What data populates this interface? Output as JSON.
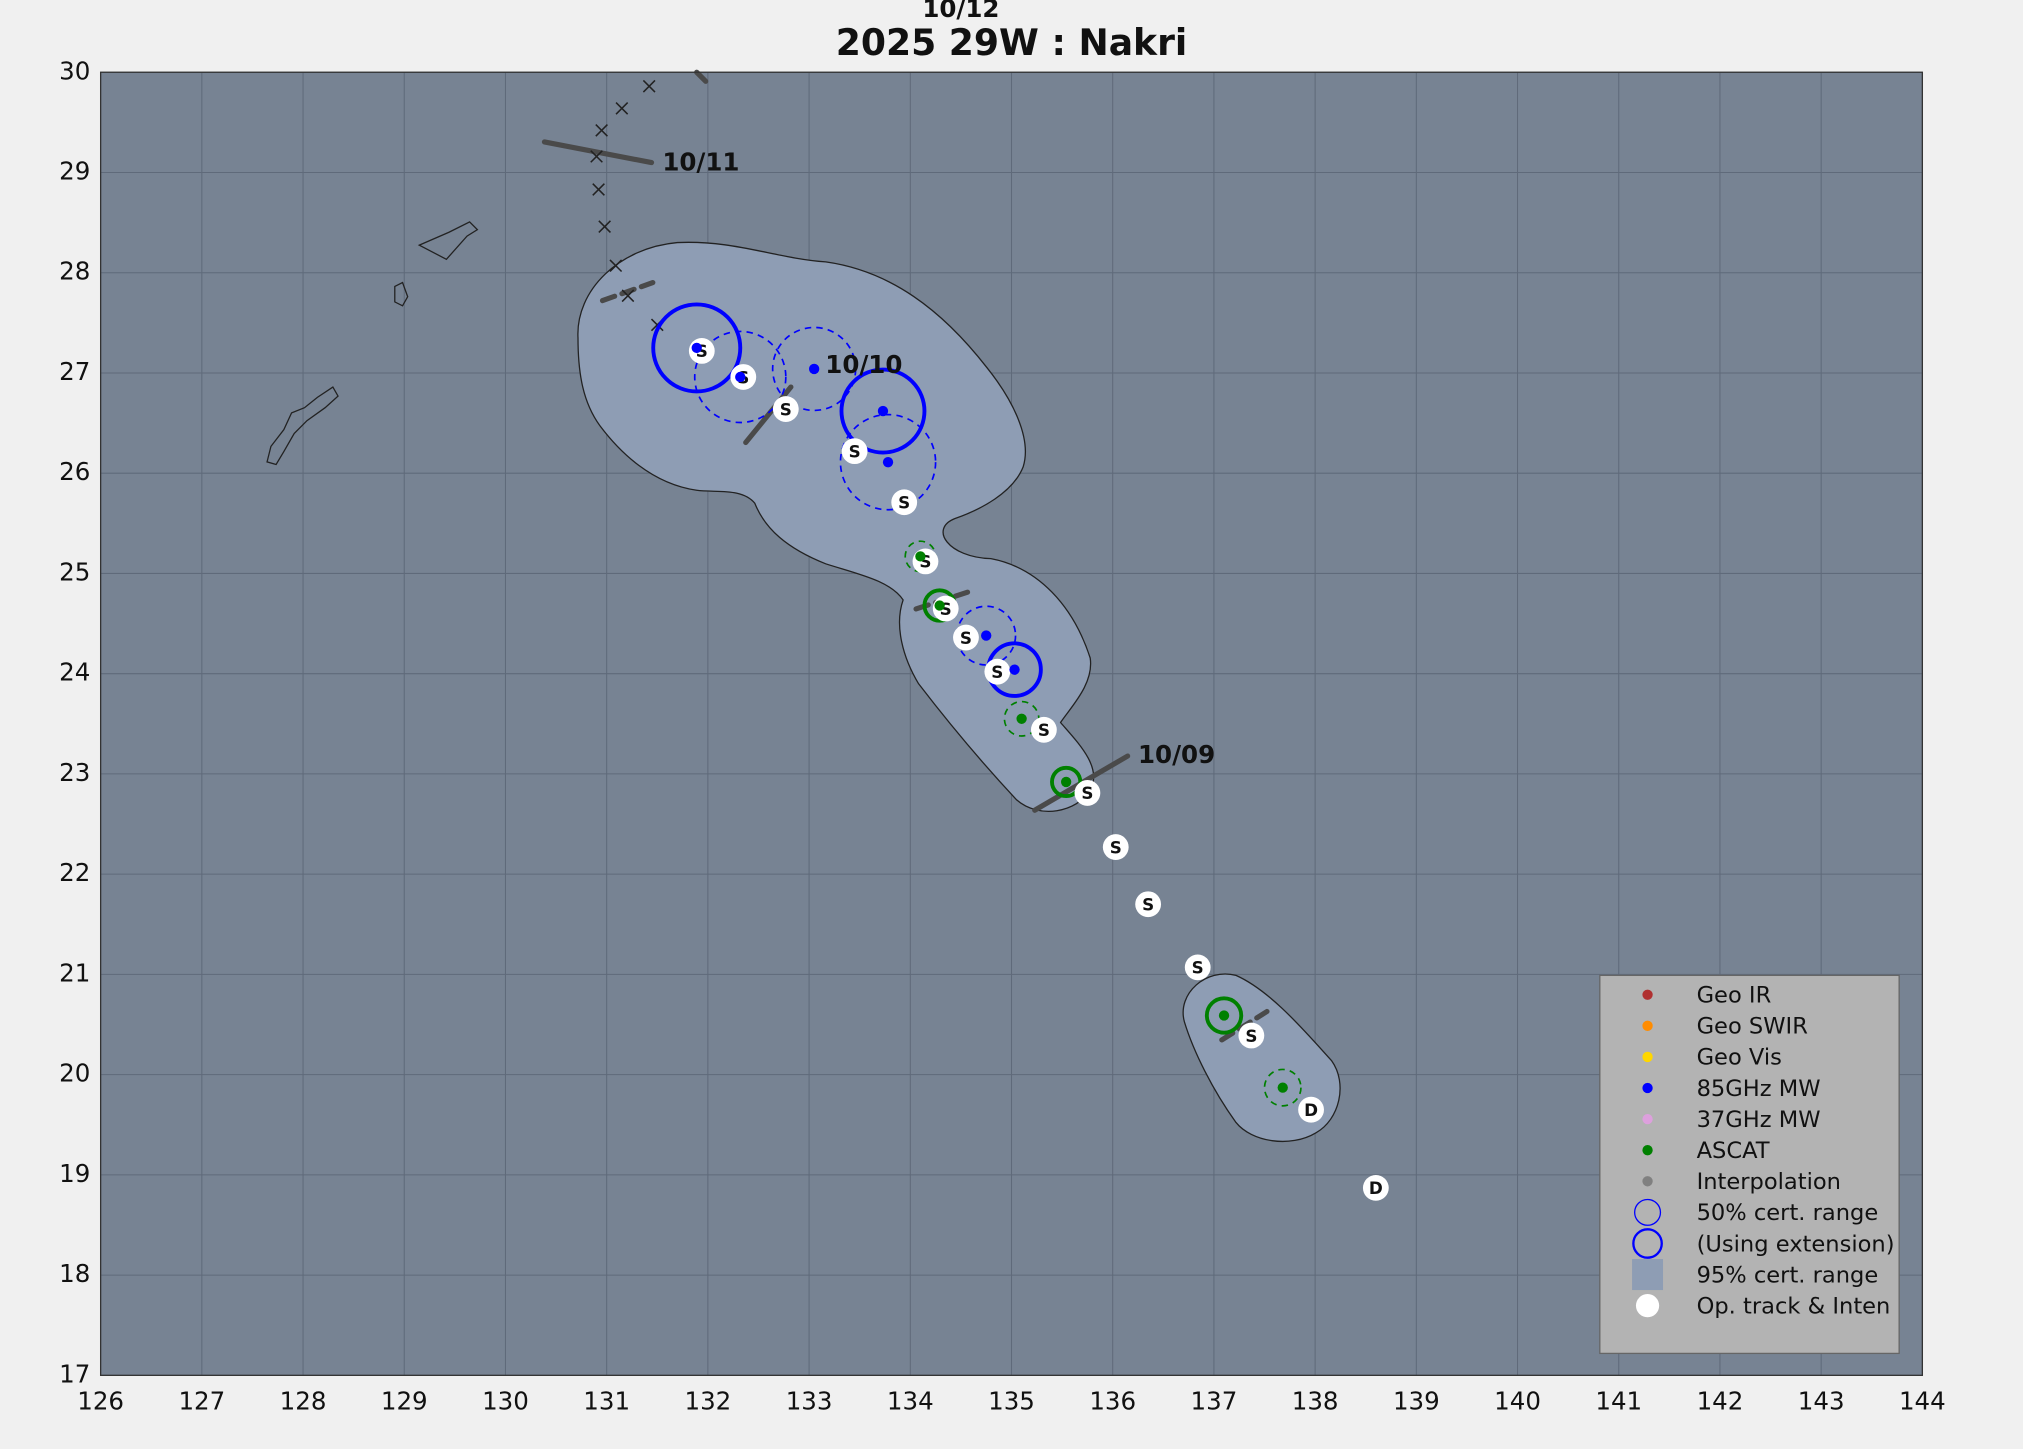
{
  "chart_data": {
    "type": "scatter",
    "title": "2025  29W :  Nakri",
    "xlim": [
      126,
      144
    ],
    "ylim": [
      17,
      30
    ],
    "xticks": [
      126,
      127,
      128,
      129,
      130,
      131,
      132,
      133,
      134,
      135,
      136,
      137,
      138,
      139,
      140,
      141,
      142,
      143,
      144
    ],
    "yticks": [
      17,
      18,
      19,
      20,
      21,
      22,
      23,
      24,
      25,
      26,
      27,
      28,
      29,
      30
    ],
    "grid": true,
    "legend_position": "lower right",
    "annotations": [
      {
        "text": "10/09",
        "x": 136.25,
        "y": 23.18
      },
      {
        "text": "10/10",
        "x": 133.16,
        "y": 27.07
      },
      {
        "text": "10/11",
        "x": 131.55,
        "y": 29.09
      },
      {
        "text": "10/12",
        "x": 134.5,
        "y": 30.62
      }
    ],
    "track_history": {
      "x": [
        131.5,
        131.21,
        131.09,
        130.98,
        130.92,
        130.9,
        130.95,
        131.15,
        131.42
      ],
      "y": [
        27.48,
        27.77,
        28.07,
        28.46,
        28.83,
        29.16,
        29.42,
        29.64,
        29.86
      ]
    },
    "op_track": {
      "color": "#ffffff",
      "x": [
        138.6,
        137.96,
        137.37,
        136.84,
        136.35,
        136.03,
        135.75,
        135.32,
        134.86,
        134.55,
        134.35,
        134.15,
        133.94,
        133.45,
        132.77,
        132.35,
        131.94
      ],
      "y": [
        18.87,
        19.65,
        20.39,
        21.07,
        21.7,
        22.27,
        22.81,
        23.44,
        24.02,
        24.36,
        24.65,
        25.12,
        25.71,
        26.22,
        26.64,
        26.96,
        27.22
      ],
      "labels": [
        "D",
        "D",
        "S",
        "S",
        "S",
        "S",
        "S",
        "S",
        "S",
        "S",
        "S",
        "S",
        "S",
        "S",
        "S",
        "S",
        "S"
      ]
    },
    "fixes": [
      {
        "color": "#0000ff",
        "x": [
          131.89,
          132.32,
          133.05,
          133.73,
          133.78,
          134.75,
          135.03
        ],
        "y": [
          27.25,
          26.96,
          27.04,
          26.62,
          26.11,
          24.38,
          24.04
        ],
        "radius": [
          0.43,
          0.45,
          0.41,
          0.41,
          0.47,
          0.29,
          0.26
        ],
        "extended": [
          true,
          false,
          false,
          true,
          false,
          false,
          true
        ]
      },
      {
        "color": "#008000",
        "x": [
          134.1,
          134.29,
          135.1,
          135.54,
          137.1,
          137.68
        ],
        "y": [
          25.17,
          24.68,
          23.55,
          22.92,
          20.59,
          19.87
        ],
        "radius": [
          0.15,
          0.15,
          0.17,
          0.14,
          0.17,
          0.18
        ],
        "extended": [
          false,
          true,
          false,
          true,
          true,
          false
        ]
      }
    ],
    "legend": [
      {
        "name": "Geo IR",
        "color": "#b03030",
        "marker": "dot"
      },
      {
        "name": "Geo SWIR",
        "color": "#ff8c00",
        "marker": "dot"
      },
      {
        "name": "Geo Vis",
        "color": "#ffd700",
        "marker": "dot"
      },
      {
        "name": "85GHz MW",
        "color": "#0000ff",
        "marker": "dot"
      },
      {
        "name": "37GHz MW",
        "color": "#dda0dd",
        "marker": "dot"
      },
      {
        "name": "ASCAT",
        "color": "#008000",
        "marker": "dot"
      },
      {
        "name": "Interpolation",
        "color": "#808080",
        "marker": "dot"
      },
      {
        "name": "50% cert. range",
        "color": "#0000ff",
        "marker": "ring"
      },
      {
        "name": "(Using extension)",
        "color": "#0000ff",
        "marker": "ring-thick"
      },
      {
        "name": "95% cert. range",
        "color": "#8e9db4",
        "marker": "square"
      },
      {
        "name": "Op. track & Inten",
        "color": "#ffffff",
        "marker": "big-dot"
      }
    ]
  }
}
